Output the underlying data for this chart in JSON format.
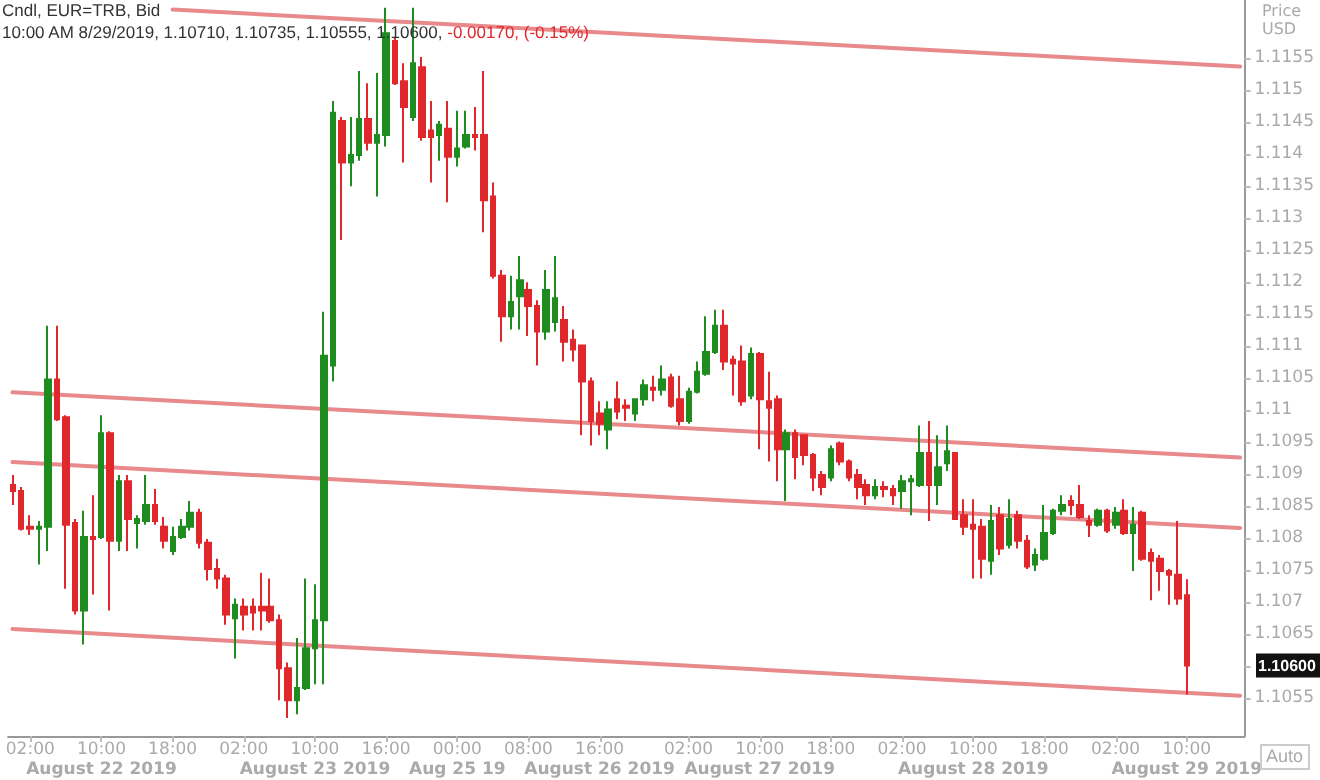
{
  "chart_data": {
    "type": "candlestick",
    "title": "Cndl, EUR=TRB, Bid",
    "subtitle": "10:00 AM 8/29/2019, 1.10710, 1.10735, 1.10555, 1.10600,",
    "ylabel": "Price USD",
    "annotations": [
      "-0.00170, (-0.15%)",
      "Auto",
      "1.10600"
    ],
    "grid": false,
    "marker": "none",
    "line_style": "solid",
    "categories": [
      null,
      null,
      "02:00",
      null,
      null,
      null,
      null,
      null,
      null,
      null,
      "10:00\nAugust 22 2019",
      null,
      null,
      null,
      null,
      null,
      null,
      null,
      "18:00",
      null,
      null,
      null,
      null,
      null,
      null,
      null,
      "02:00",
      null,
      null,
      null,
      null,
      null,
      null,
      null,
      "10:00\nAugust 23 2019",
      null,
      null,
      null,
      null,
      null,
      null,
      null,
      "16:00",
      null,
      null,
      null,
      null,
      null,
      null,
      null,
      "00:00\nAug 25 19",
      null,
      null,
      null,
      null,
      null,
      null,
      null,
      "08:00",
      null,
      null,
      null,
      null,
      null,
      null,
      null,
      "16:00\nAugust 26 2019",
      null,
      null,
      null,
      null,
      null,
      null,
      null,
      null,
      null,
      "02:00",
      null,
      null,
      null,
      null,
      null,
      null,
      null,
      "10:00\nAugust 27 2019",
      null,
      null,
      null,
      null,
      null,
      null,
      null,
      "18:00",
      null,
      null,
      null,
      null,
      null,
      null,
      null,
      "02:00",
      null,
      null,
      null,
      null,
      null,
      null,
      null,
      "10:00\nAugust 28 2019",
      null,
      null,
      null,
      null,
      null,
      null,
      null,
      "18:00",
      null,
      null,
      null,
      null,
      null,
      null,
      null,
      "02:00",
      null,
      null,
      null,
      null,
      null,
      null,
      null,
      "10:00\nAugust 29 2019",
      null,
      null,
      null,
      null,
      null,
      null
    ],
    "ylim": [
      1.1049,
      1.1164
    ],
    "yticks": [
      1.1055,
      {
        "value": 1.106,
        "label": null
      },
      1.1065,
      1.107,
      1.1075,
      1.108,
      1.1085,
      1.109,
      1.1095,
      1.11,
      1.1105,
      1.111,
      1.1115,
      1.112,
      1.1125,
      1.113,
      1.1135,
      1.114,
      1.1145,
      1.115,
      1.1155
    ],
    "series": [
      {
        "ohlc": [
          [
            1.10882,
            1.10898,
            1.10851,
            1.10873
          ],
          [
            1.10873,
            1.10879,
            1.10811,
            1.10814
          ],
          [
            1.10817,
            1.10835,
            1.10804,
            1.10814
          ],
          [
            1.10814,
            1.10826,
            1.10758,
            1.10817
          ],
          [
            1.10817,
            1.11131,
            1.10779,
            1.11047
          ],
          [
            1.11047,
            1.11131,
            1.10982,
            1.10985
          ],
          [
            1.10988,
            1.10991,
            1.1072,
            1.1082
          ],
          [
            1.10823,
            1.10829,
            1.1068,
            1.10686
          ],
          [
            1.10686,
            1.10842,
            1.10633,
            1.10801
          ],
          [
            1.10801,
            1.10866,
            1.10711,
            1.10798
          ],
          [
            1.10801,
            1.10991,
            1.10798,
            1.10963
          ],
          [
            1.10963,
            1.10966,
            1.10686,
            1.10795
          ],
          [
            1.10795,
            1.10898,
            1.10779,
            1.10888
          ],
          [
            1.10888,
            1.10898,
            1.10779,
            1.10829
          ],
          [
            1.10823,
            1.10835,
            1.10783,
            1.10829
          ],
          [
            1.10826,
            1.10898,
            1.1082,
            1.10851
          ],
          [
            1.10851,
            1.10876,
            1.1082,
            1.10826
          ],
          [
            1.10817,
            1.10832,
            1.10783,
            1.10795
          ],
          [
            1.10779,
            1.10817,
            1.10773,
            1.10801
          ],
          [
            1.10801,
            1.10829,
            1.10798,
            1.10817
          ],
          [
            1.10817,
            1.10857,
            1.10811,
            1.10839
          ],
          [
            1.10839,
            1.10845,
            1.10783,
            1.10792
          ],
          [
            1.10792,
            1.10798,
            1.10733,
            1.10751
          ],
          [
            1.10751,
            1.10767,
            1.1072,
            1.10736
          ],
          [
            1.10736,
            1.10742,
            1.10664,
            1.1068
          ],
          [
            1.10674,
            1.10705,
            1.10611,
            1.10695
          ],
          [
            1.10692,
            1.10705,
            1.10655,
            1.1068
          ],
          [
            1.10692,
            1.10705,
            1.10655,
            1.10683
          ],
          [
            1.10692,
            1.10745,
            1.10655,
            1.10686
          ],
          [
            1.10692,
            1.10736,
            1.10667,
            1.10671
          ],
          [
            1.10671,
            1.1068,
            1.10546,
            1.10596
          ],
          [
            1.10596,
            1.10605,
            1.10518,
            1.10546
          ],
          [
            1.10546,
            1.10643,
            1.10524,
            1.10565
          ],
          [
            1.10565,
            1.10736,
            1.10562,
            1.10627
          ],
          [
            1.10627,
            1.10727,
            1.10571,
            1.10671
          ],
          [
            1.10671,
            1.11153,
            1.10571,
            1.11084
          ],
          [
            1.11069,
            1.11482,
            1.11044,
            1.11464
          ],
          [
            1.11451,
            1.11457,
            1.11265,
            1.11386
          ],
          [
            1.11386,
            1.11457,
            1.11349,
            1.11398
          ],
          [
            1.11398,
            1.11529,
            1.11389,
            1.11454
          ],
          [
            1.11454,
            1.1151,
            1.11405,
            1.11417
          ],
          [
            1.11417,
            1.11526,
            1.11333,
            1.11429
          ],
          [
            1.11429,
            1.11628,
            1.11411,
            1.11588
          ],
          [
            1.11576,
            1.11582,
            1.11507,
            1.1151
          ],
          [
            1.11513,
            1.11541,
            1.11386,
            1.11473
          ],
          [
            1.11457,
            1.11628,
            1.11451,
            1.11541
          ],
          [
            1.11535,
            1.11551,
            1.1142,
            1.11426
          ],
          [
            1.11436,
            1.11482,
            1.11355,
            1.11426
          ],
          [
            1.11429,
            1.11451,
            1.11389,
            1.11445
          ],
          [
            1.11439,
            1.11482,
            1.11324,
            1.11395
          ],
          [
            1.11395,
            1.11467,
            1.1138,
            1.11408
          ],
          [
            1.11411,
            1.11467,
            1.11408,
            1.11429
          ],
          [
            1.11429,
            1.11473,
            1.11405,
            1.11426
          ],
          [
            1.11429,
            1.11529,
            1.11277,
            1.11327
          ],
          [
            1.11333,
            1.11355,
            1.11205,
            1.11209
          ],
          [
            1.11209,
            1.11218,
            1.11106,
            1.11146
          ],
          [
            1.11146,
            1.11209,
            1.11125,
            1.11168
          ],
          [
            1.11177,
            1.1124,
            1.11125,
            1.11202
          ],
          [
            1.11187,
            1.11199,
            1.11115,
            1.11162
          ],
          [
            1.11162,
            1.11171,
            1.11069,
            1.11122
          ],
          [
            1.11122,
            1.11218,
            1.11109,
            1.11187
          ],
          [
            1.11137,
            1.1124,
            1.11122,
            1.11174
          ],
          [
            1.1114,
            1.11162,
            1.11075,
            1.11106
          ],
          [
            1.11109,
            1.11125,
            1.11075,
            1.11094
          ],
          [
            1.111,
            1.111,
            1.1096,
            1.11044
          ],
          [
            1.11044,
            1.1105,
            1.10944,
            1.10982
          ],
          [
            1.10994,
            1.11013,
            1.1096,
            1.10978
          ],
          [
            1.10969,
            1.11013,
            1.10938,
            1.11
          ],
          [
            1.11016,
            1.11044,
            1.10985,
            1.10997
          ],
          [
            1.11006,
            1.11016,
            1.10982,
            1.11003
          ],
          [
            1.10994,
            1.11016,
            1.10982,
            1.11016
          ],
          [
            1.11016,
            1.11047,
            1.11006,
            1.11038
          ],
          [
            1.11034,
            1.11053,
            1.11013,
            1.11031
          ],
          [
            1.11031,
            1.11069,
            1.11022,
            1.11047
          ],
          [
            1.1105,
            1.11056,
            1.11003,
            1.11006
          ],
          [
            1.11016,
            1.11053,
            1.10975,
            1.10982
          ],
          [
            1.10982,
            1.11034,
            1.10978,
            1.11028
          ],
          [
            1.11028,
            1.11075,
            1.11025,
            1.11059
          ],
          [
            1.11056,
            1.11146,
            1.11053,
            1.1109
          ],
          [
            1.1109,
            1.11156,
            1.11087,
            1.11131
          ],
          [
            1.11131,
            1.11156,
            1.11062,
            1.11075
          ],
          [
            1.11078,
            1.11084,
            1.11022,
            1.11072
          ],
          [
            1.11075,
            1.111,
            1.11006,
            1.11013
          ],
          [
            1.11022,
            1.11097,
            1.11016,
            1.11087
          ],
          [
            1.11087,
            1.1109,
            1.10938,
            1.11016
          ],
          [
            1.11013,
            1.11059,
            1.10919,
            1.11003
          ],
          [
            1.11016,
            1.11022,
            1.10888,
            1.10938
          ],
          [
            1.10938,
            1.10969,
            1.10857,
            1.10963
          ],
          [
            1.10963,
            1.10969,
            1.10891,
            1.10926
          ],
          [
            1.1096,
            1.1096,
            1.10913,
            1.10929
          ],
          [
            1.10929,
            1.10932,
            1.10873,
            1.10894
          ],
          [
            1.10898,
            1.10904,
            1.10866,
            1.10879
          ],
          [
            1.10894,
            1.10944,
            1.10888,
            1.10938
          ],
          [
            1.10947,
            1.1095,
            1.10913,
            1.10919
          ],
          [
            1.10919,
            1.10922,
            1.10888,
            1.10894
          ],
          [
            1.10898,
            1.10907,
            1.1086,
            1.10879
          ],
          [
            1.10882,
            1.10891,
            1.10851,
            1.10866
          ],
          [
            1.10866,
            1.10891,
            1.1086,
            1.10879
          ],
          [
            1.10879,
            1.10888,
            1.10863,
            1.10876
          ],
          [
            1.10876,
            1.10882,
            1.10851,
            1.10866
          ],
          [
            1.10873,
            1.10898,
            1.10845,
            1.10888
          ],
          [
            1.10888,
            1.10898,
            1.10835,
            1.10891
          ],
          [
            1.10882,
            1.10975,
            1.10879,
            1.10932
          ],
          [
            1.10932,
            1.10982,
            1.10826,
            1.10882
          ],
          [
            1.10882,
            1.1096,
            1.10851,
            1.1091
          ],
          [
            1.10916,
            1.10975,
            1.10904,
            1.10935
          ],
          [
            1.10932,
            1.10932,
            1.10829,
            1.10829
          ],
          [
            1.10835,
            1.1086,
            1.10804,
            1.10817
          ],
          [
            1.1082,
            1.1086,
            1.10736,
            1.10814
          ],
          [
            1.10817,
            1.10829,
            1.10736,
            1.10767
          ],
          [
            1.10764,
            1.10851,
            1.10742,
            1.10826
          ],
          [
            1.10835,
            1.10848,
            1.10773,
            1.10783
          ],
          [
            1.10789,
            1.1086,
            1.10783,
            1.10829
          ],
          [
            1.10835,
            1.10842,
            1.10783,
            1.10795
          ],
          [
            1.10795,
            1.10804,
            1.10751,
            1.10755
          ],
          [
            1.10758,
            1.10783,
            1.10748,
            1.10773
          ],
          [
            1.10767,
            1.10851,
            1.10764,
            1.10807
          ],
          [
            1.10807,
            1.10845,
            1.10804,
            1.10842
          ],
          [
            1.10842,
            1.10866,
            1.10835,
            1.10851
          ],
          [
            1.10857,
            1.10866,
            1.10835,
            1.10851
          ],
          [
            1.10851,
            1.10882,
            1.10829,
            1.10832
          ],
          [
            1.10826,
            1.10835,
            1.10801,
            1.1082
          ],
          [
            1.1082,
            1.10845,
            1.10817,
            1.10842
          ],
          [
            1.10842,
            1.10845,
            1.10807,
            1.10811
          ],
          [
            1.1082,
            1.10848,
            1.10814,
            1.10839
          ],
          [
            1.10842,
            1.1086,
            1.10804,
            1.10807
          ],
          [
            1.10807,
            1.10848,
            1.10748,
            1.1082
          ],
          [
            1.10839,
            1.10842,
            1.10764,
            1.10767
          ],
          [
            1.10776,
            1.10783,
            1.10702,
            1.10764
          ],
          [
            1.10767,
            1.10773,
            1.10717,
            1.10748
          ],
          [
            1.10748,
            1.10751,
            1.10695,
            1.10742
          ],
          [
            1.10742,
            1.10826,
            1.10695,
            1.10705
          ],
          [
            1.1071,
            1.10735,
            1.10555,
            1.106
          ],
          null,
          null,
          null,
          null,
          null,
          null
        ],
        "colors": [
          "#e0282c",
          "#e0282c",
          "#e0282c",
          "#1e8c1e",
          "#1e8c1e",
          "#e0282c",
          "#e0282c",
          "#e0282c",
          "#1e8c1e",
          "#e0282c",
          "#1e8c1e",
          "#e0282c",
          "#1e8c1e",
          "#e0282c",
          "#1e8c1e",
          "#1e8c1e",
          "#e0282c",
          "#e0282c",
          "#1e8c1e",
          "#1e8c1e",
          "#1e8c1e",
          "#e0282c",
          "#e0282c",
          "#e0282c",
          "#e0282c",
          "#1e8c1e",
          "#e0282c",
          "#e0282c",
          "#e0282c",
          "#e0282c",
          "#e0282c",
          "#e0282c",
          "#1e8c1e",
          "#1e8c1e",
          "#1e8c1e",
          "#1e8c1e",
          "#1e8c1e",
          "#e0282c",
          "#1e8c1e",
          "#1e8c1e",
          "#e0282c",
          "#1e8c1e",
          "#1e8c1e",
          "#e0282c",
          "#e0282c",
          "#1e8c1e",
          "#e0282c",
          "#e0282c",
          "#1e8c1e",
          "#e0282c",
          "#1e8c1e",
          "#1e8c1e",
          "#e0282c",
          "#e0282c",
          "#e0282c",
          "#e0282c",
          "#1e8c1e",
          "#1e8c1e",
          "#e0282c",
          "#e0282c",
          "#1e8c1e",
          "#1e8c1e",
          "#e0282c",
          "#e0282c",
          "#e0282c",
          "#e0282c",
          "#e0282c",
          "#1e8c1e",
          "#e0282c",
          "#e0282c",
          "#1e8c1e",
          "#1e8c1e",
          "#e0282c",
          "#1e8c1e",
          "#e0282c",
          "#e0282c",
          "#1e8c1e",
          "#1e8c1e",
          "#1e8c1e",
          "#1e8c1e",
          "#e0282c",
          "#e0282c",
          "#e0282c",
          "#1e8c1e",
          "#e0282c",
          "#e0282c",
          "#e0282c",
          "#1e8c1e",
          "#e0282c",
          "#e0282c",
          "#e0282c",
          "#e0282c",
          "#1e8c1e",
          "#e0282c",
          "#e0282c",
          "#e0282c",
          "#e0282c",
          "#1e8c1e",
          "#e0282c",
          "#e0282c",
          "#1e8c1e",
          "#1e8c1e",
          "#1e8c1e",
          "#e0282c",
          "#1e8c1e",
          "#1e8c1e",
          "#e0282c",
          "#e0282c",
          "#e0282c",
          "#e0282c",
          "#1e8c1e",
          "#e0282c",
          "#1e8c1e",
          "#e0282c",
          "#e0282c",
          "#1e8c1e",
          "#1e8c1e",
          "#1e8c1e",
          "#1e8c1e",
          "#e0282c",
          "#e0282c",
          "#e0282c",
          "#1e8c1e",
          "#e0282c",
          "#1e8c1e",
          "#e0282c",
          "#1e8c1e",
          "#e0282c",
          "#e0282c",
          "#e0282c",
          "#e0282c",
          "#e0282c",
          "#e0282c",
          null,
          null,
          null,
          null,
          null,
          null
        ]
      },
      {
        "type": "line",
        "values": [
          null,
          null,
          null,
          null,
          null,
          null,
          null,
          null,
          null,
          null,
          null,
          null,
          null,
          null,
          null,
          null,
          null,
          null,
          1.11625,
          null,
          null,
          null,
          null,
          null,
          null,
          null,
          null,
          null,
          null,
          null,
          null,
          null,
          null,
          null,
          null,
          null,
          null,
          null,
          null,
          null,
          null,
          null,
          null,
          null,
          null,
          null,
          null,
          null,
          null,
          null,
          null,
          null,
          null,
          null,
          null,
          null,
          null,
          null,
          null,
          null,
          null,
          null,
          null,
          null,
          null,
          null,
          null,
          null,
          null,
          null,
          null,
          null,
          null,
          null,
          null,
          null,
          null,
          null,
          null,
          null,
          null,
          null,
          null,
          null,
          null,
          null,
          null,
          null,
          null,
          null,
          null,
          null,
          null,
          null,
          null,
          null,
          null,
          null,
          null,
          null,
          null,
          null,
          null,
          null,
          null,
          null,
          null,
          null,
          null,
          null,
          null,
          null,
          null,
          null,
          null,
          null,
          null,
          null,
          null,
          null,
          null,
          null,
          null,
          null,
          null,
          null,
          null,
          null,
          null,
          null,
          null,
          null,
          null,
          null,
          null,
          null,
          null,
          null,
          1.11536
        ],
        "color": "#e8898b"
      },
      {
        "type": "line",
        "values": [
          1.11027,
          null,
          null,
          null,
          null,
          null,
          null,
          null,
          null,
          null,
          null,
          null,
          null,
          null,
          null,
          null,
          null,
          null,
          null,
          null,
          null,
          null,
          null,
          null,
          null,
          null,
          null,
          null,
          null,
          null,
          null,
          null,
          null,
          null,
          null,
          null,
          null,
          null,
          null,
          null,
          null,
          null,
          null,
          null,
          null,
          null,
          null,
          null,
          null,
          null,
          null,
          null,
          null,
          null,
          null,
          null,
          null,
          null,
          null,
          null,
          null,
          null,
          null,
          null,
          null,
          null,
          null,
          null,
          null,
          null,
          null,
          null,
          null,
          null,
          null,
          null,
          null,
          null,
          null,
          null,
          null,
          null,
          null,
          null,
          null,
          null,
          null,
          null,
          null,
          null,
          null,
          null,
          null,
          null,
          null,
          null,
          null,
          null,
          null,
          null,
          null,
          null,
          null,
          null,
          null,
          null,
          null,
          null,
          null,
          null,
          null,
          null,
          null,
          null,
          null,
          null,
          null,
          null,
          null,
          null,
          null,
          null,
          null,
          null,
          null,
          null,
          null,
          null,
          null,
          null,
          null,
          null,
          null,
          null,
          null,
          null,
          null,
          null,
          1.10925
        ],
        "color": "#e8898b"
      },
      {
        "type": "line",
        "values": [
          1.10918,
          null,
          null,
          null,
          null,
          null,
          null,
          null,
          null,
          null,
          null,
          null,
          null,
          null,
          null,
          null,
          null,
          null,
          null,
          null,
          null,
          null,
          null,
          null,
          null,
          null,
          null,
          null,
          null,
          null,
          null,
          null,
          null,
          null,
          null,
          null,
          null,
          null,
          null,
          null,
          null,
          null,
          null,
          null,
          null,
          null,
          null,
          null,
          null,
          null,
          null,
          null,
          null,
          null,
          null,
          null,
          null,
          null,
          null,
          null,
          null,
          null,
          null,
          null,
          null,
          null,
          null,
          null,
          null,
          null,
          null,
          null,
          null,
          null,
          null,
          null,
          null,
          null,
          null,
          null,
          null,
          null,
          null,
          null,
          null,
          null,
          null,
          null,
          null,
          null,
          null,
          null,
          null,
          null,
          null,
          null,
          null,
          null,
          null,
          null,
          null,
          null,
          null,
          null,
          null,
          null,
          null,
          null,
          null,
          null,
          null,
          null,
          null,
          null,
          null,
          null,
          null,
          null,
          null,
          null,
          null,
          null,
          null,
          null,
          null,
          null,
          null,
          null,
          null,
          null,
          null,
          null,
          null,
          null,
          null,
          null,
          null,
          null,
          1.10815
        ],
        "color": "#e8898b"
      },
      {
        "type": "line",
        "values": [
          1.10657,
          null,
          null,
          null,
          null,
          null,
          null,
          null,
          null,
          null,
          null,
          null,
          null,
          null,
          null,
          null,
          null,
          null,
          null,
          null,
          null,
          null,
          null,
          null,
          null,
          null,
          null,
          null,
          null,
          null,
          null,
          null,
          null,
          null,
          null,
          null,
          null,
          null,
          null,
          null,
          null,
          null,
          null,
          null,
          null,
          null,
          null,
          null,
          null,
          null,
          null,
          null,
          null,
          null,
          null,
          null,
          null,
          null,
          null,
          null,
          null,
          null,
          null,
          null,
          null,
          null,
          null,
          null,
          null,
          null,
          null,
          null,
          null,
          null,
          null,
          null,
          null,
          null,
          null,
          null,
          null,
          null,
          null,
          null,
          null,
          null,
          null,
          null,
          null,
          null,
          null,
          null,
          null,
          null,
          null,
          null,
          null,
          null,
          null,
          null,
          null,
          null,
          null,
          null,
          null,
          null,
          null,
          null,
          null,
          null,
          null,
          null,
          null,
          null,
          null,
          null,
          null,
          null,
          null,
          null,
          null,
          null,
          null,
          null,
          null,
          null,
          null,
          null,
          null,
          null,
          null,
          null,
          null,
          null,
          null,
          null,
          null,
          null,
          1.10553
        ],
        "color": "#e8898b"
      }
    ]
  }
}
